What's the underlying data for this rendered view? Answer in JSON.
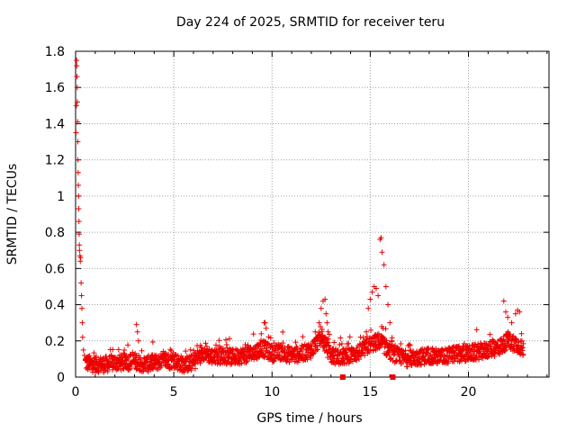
{
  "chart_data": {
    "type": "scatter",
    "title": "Day 224 of 2025, SRMTID for receiver teru",
    "xlabel": "GPS time / hours",
    "ylabel": "SRMTID / TECUs",
    "xlim": [
      0,
      24.1
    ],
    "ylim": [
      0,
      1.8
    ],
    "xticks": [
      0,
      5,
      10,
      15,
      20
    ],
    "yticks": [
      0,
      0.2,
      0.4,
      0.6,
      0.8,
      1,
      1.2,
      1.4,
      1.6,
      1.8
    ],
    "xtick_labels": [
      "0",
      "5",
      "10",
      "15",
      "20"
    ],
    "ytick_labels": [
      "0",
      "0.2",
      "0.4",
      "0.6",
      "0.8",
      "1",
      "1.2",
      "1.4",
      "1.6",
      "1.8"
    ],
    "grid": true,
    "marker": "plus",
    "color": "#ee0000",
    "series": [
      {
        "name": "SRMTID",
        "points": [
          [
            0.02,
            1.35
          ],
          [
            0.04,
            1.5
          ],
          [
            0.05,
            1.75
          ],
          [
            0.06,
            1.72
          ],
          [
            0.07,
            1.66
          ],
          [
            0.08,
            1.6
          ],
          [
            0.09,
            1.52
          ],
          [
            0.1,
            1.41
          ],
          [
            0.11,
            1.3
          ],
          [
            0.12,
            1.2
          ],
          [
            0.13,
            1.13
          ],
          [
            0.14,
            1.06
          ],
          [
            0.15,
            1.0
          ],
          [
            0.16,
            0.93
          ],
          [
            0.17,
            0.86
          ],
          [
            0.18,
            0.79
          ],
          [
            0.19,
            0.73
          ],
          [
            0.2,
            0.7
          ],
          [
            0.22,
            0.67
          ],
          [
            0.24,
            0.64
          ],
          [
            0.26,
            0.66
          ],
          [
            0.28,
            0.52
          ],
          [
            0.3,
            0.45
          ],
          [
            0.32,
            0.38
          ],
          [
            0.34,
            0.3
          ],
          [
            0.36,
            0.22
          ],
          [
            0.4,
            0.15
          ],
          [
            0.45,
            0.12
          ],
          [
            0.5,
            0.1
          ],
          [
            0.6,
            0.08
          ],
          [
            3.1,
            0.29
          ],
          [
            3.15,
            0.25
          ],
          [
            3.2,
            0.2
          ],
          [
            9.6,
            0.3
          ],
          [
            9.65,
            0.3
          ],
          [
            9.7,
            0.27
          ],
          [
            12.2,
            0.25
          ],
          [
            12.4,
            0.3
          ],
          [
            12.5,
            0.38
          ],
          [
            12.6,
            0.42
          ],
          [
            12.7,
            0.43
          ],
          [
            12.75,
            0.35
          ],
          [
            12.8,
            0.3
          ],
          [
            12.85,
            0.25
          ],
          [
            14.8,
            0.25
          ],
          [
            14.9,
            0.38
          ],
          [
            15.0,
            0.43
          ],
          [
            15.1,
            0.47
          ],
          [
            15.2,
            0.5
          ],
          [
            15.3,
            0.49
          ],
          [
            15.4,
            0.45
          ],
          [
            15.5,
            0.76
          ],
          [
            15.55,
            0.77
          ],
          [
            15.6,
            0.69
          ],
          [
            15.7,
            0.62
          ],
          [
            15.8,
            0.5
          ],
          [
            15.9,
            0.4
          ],
          [
            16.0,
            0.3
          ],
          [
            16.1,
            0.2
          ],
          [
            21.8,
            0.42
          ],
          [
            21.9,
            0.36
          ],
          [
            22.0,
            0.33
          ],
          [
            22.2,
            0.3
          ],
          [
            22.4,
            0.35
          ],
          [
            22.5,
            0.37
          ],
          [
            22.6,
            0.36
          ],
          [
            22.7,
            0.24
          ]
        ]
      }
    ],
    "envelope": [
      [
        0.5,
        0.08
      ],
      [
        1,
        0.07
      ],
      [
        1.5,
        0.07
      ],
      [
        2,
        0.08
      ],
      [
        2.5,
        0.08
      ],
      [
        3,
        0.09
      ],
      [
        3.5,
        0.07
      ],
      [
        4,
        0.08
      ],
      [
        4.5,
        0.09
      ],
      [
        5,
        0.09
      ],
      [
        5.5,
        0.07
      ],
      [
        6,
        0.08
      ],
      [
        6.5,
        0.14
      ],
      [
        7,
        0.11
      ],
      [
        7.5,
        0.12
      ],
      [
        8,
        0.11
      ],
      [
        8.5,
        0.12
      ],
      [
        9,
        0.13
      ],
      [
        9.5,
        0.16
      ],
      [
        10,
        0.13
      ],
      [
        10.5,
        0.14
      ],
      [
        11,
        0.12
      ],
      [
        11.5,
        0.13
      ],
      [
        12,
        0.15
      ],
      [
        12.5,
        0.22
      ],
      [
        13,
        0.12
      ],
      [
        13.5,
        0.11
      ],
      [
        14,
        0.12
      ],
      [
        14.5,
        0.14
      ],
      [
        15,
        0.18
      ],
      [
        15.5,
        0.2
      ],
      [
        16,
        0.14
      ],
      [
        16.5,
        0.11
      ],
      [
        17,
        0.1
      ],
      [
        17.5,
        0.11
      ],
      [
        18,
        0.12
      ],
      [
        18.5,
        0.11
      ],
      [
        19,
        0.12
      ],
      [
        19.5,
        0.13
      ],
      [
        20,
        0.13
      ],
      [
        20.5,
        0.14
      ],
      [
        21,
        0.15
      ],
      [
        21.5,
        0.16
      ],
      [
        22,
        0.2
      ],
      [
        22.5,
        0.18
      ],
      [
        22.8,
        0.15
      ]
    ],
    "outliers_at_zero": [
      13.6,
      16.15
    ]
  }
}
